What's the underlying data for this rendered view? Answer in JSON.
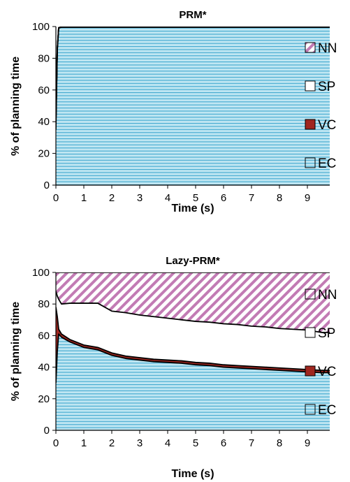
{
  "colors": {
    "nn": "#c27bb4",
    "sp": "#ffffff",
    "vc": "#a0261f",
    "ec_fill": "#bfe6f2",
    "ec_line": "#3fa8cf",
    "outline": "#000000"
  },
  "chart_data": [
    {
      "type": "area",
      "title": "PRM*",
      "xlabel": "Time (s)",
      "ylabel": "% of planning time",
      "xlim": [
        0,
        9.8
      ],
      "ylim": [
        0,
        100
      ],
      "xticks": [
        0,
        1,
        2,
        3,
        4,
        5,
        6,
        7,
        8,
        9
      ],
      "yticks": [
        0,
        20,
        40,
        60,
        80,
        100
      ],
      "stacked": true,
      "legend": [
        "NN",
        "SP",
        "VC",
        "EC"
      ],
      "legend_position": "right",
      "x": [
        0,
        0.05,
        0.1,
        0.2,
        9.8
      ],
      "series": [
        {
          "name": "EC",
          "values": [
            35,
            85,
            99,
            99.6,
            99.6
          ]
        },
        {
          "name": "VC",
          "values": [
            5,
            1,
            0.3,
            0.1,
            0.1
          ]
        },
        {
          "name": "SP",
          "values": [
            0,
            0,
            0,
            0,
            0
          ]
        },
        {
          "name": "NN",
          "values": [
            0,
            0,
            0,
            0,
            0
          ]
        }
      ]
    },
    {
      "type": "area",
      "title": "Lazy-PRM*",
      "xlabel": "Time (s)",
      "ylabel": "% of planning time",
      "xlim": [
        0,
        9.8
      ],
      "ylim": [
        0,
        100
      ],
      "xticks": [
        0,
        1,
        2,
        3,
        4,
        5,
        6,
        7,
        8,
        9
      ],
      "yticks": [
        0,
        20,
        40,
        60,
        80,
        100
      ],
      "stacked": true,
      "legend": [
        "NN",
        "SP",
        "VC",
        "EC"
      ],
      "legend_position": "right",
      "x": [
        0,
        0.05,
        0.1,
        0.2,
        0.5,
        1,
        1.5,
        2,
        2.5,
        3,
        3.5,
        4,
        4.5,
        5,
        5.5,
        6,
        6.5,
        7,
        7.5,
        8,
        8.5,
        9,
        9.5,
        9.8
      ],
      "series": [
        {
          "name": "EC",
          "values": [
            30,
            50,
            61,
            59,
            56,
            52.5,
            51,
            47.5,
            45.5,
            44.5,
            43.5,
            43,
            42.5,
            41.5,
            41,
            40,
            39.5,
            39,
            38.5,
            38,
            37.5,
            37,
            36.5,
            36.5
          ]
        },
        {
          "name": "VC",
          "values": [
            48,
            22,
            3,
            2,
            1.5,
            1.5,
            1.5,
            1.5,
            1.5,
            1.5,
            1.5,
            1.5,
            1.5,
            1.5,
            1.5,
            1.5,
            1.5,
            1.5,
            1.5,
            1.5,
            1.5,
            1.5,
            1.5,
            1.5
          ]
        },
        {
          "name": "SP",
          "values": [
            10,
            13,
            19,
            19,
            23,
            26.5,
            28,
            26.5,
            27.5,
            27,
            27,
            26.5,
            26,
            26,
            26,
            26,
            26,
            25.5,
            25.5,
            25,
            25,
            25,
            24,
            24
          ]
        },
        {
          "name": "NN",
          "values": [
            12,
            15,
            17,
            20,
            19.5,
            19.5,
            19.5,
            24.5,
            25.5,
            27,
            28,
            29,
            30,
            31,
            31.5,
            32.5,
            33,
            34,
            34.5,
            35.5,
            36,
            36.5,
            38,
            38
          ]
        }
      ]
    }
  ]
}
